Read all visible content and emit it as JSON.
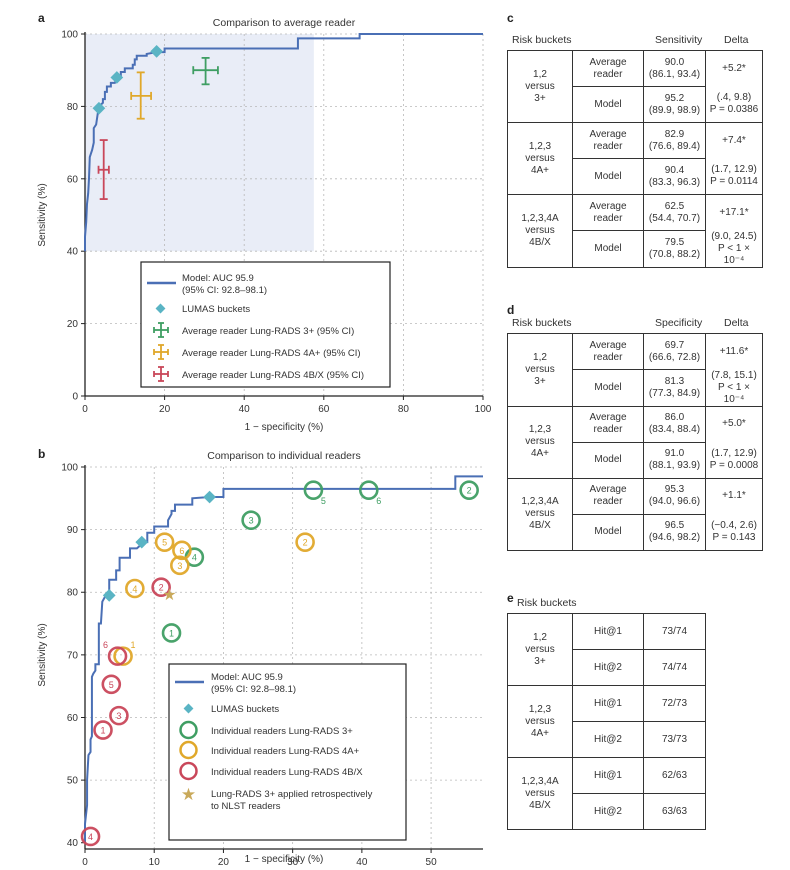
{
  "panels": {
    "a": "a",
    "b": "b",
    "c": "c",
    "d": "d",
    "e": "e"
  },
  "chart_data": [
    {
      "id": "a",
      "type": "line",
      "title": "Comparison to average reader",
      "xlabel": "1 − specificity (%)",
      "ylabel": "Sensitivity (%)",
      "xlim": [
        0,
        100
      ],
      "ylim": [
        0,
        100
      ],
      "xticks": [
        0,
        20,
        40,
        60,
        80,
        100
      ],
      "yticks": [
        0,
        20,
        40,
        60,
        80,
        100
      ],
      "grid": true,
      "shaded_region": {
        "x": [
          0,
          57.5
        ],
        "y": [
          40,
          100
        ]
      },
      "colors": {
        "model": "#4a6fb5",
        "lumas": "#5ab4c4",
        "shade": "#e9edf7",
        "r3": "#3f9e63",
        "r4a": "#e0a82a",
        "r4b": "#c9475a"
      },
      "roc_curve": [
        [
          0,
          40
        ],
        [
          0,
          44
        ],
        [
          0.3,
          48
        ],
        [
          0.5,
          53
        ],
        [
          0.8,
          56
        ],
        [
          1,
          60
        ],
        [
          1.2,
          66
        ],
        [
          1.8,
          68
        ],
        [
          2.2,
          70
        ],
        [
          2.2,
          74
        ],
        [
          2.8,
          75
        ],
        [
          3.2,
          78
        ],
        [
          3.5,
          80
        ],
        [
          4.5,
          81
        ],
        [
          4.5,
          82
        ],
        [
          5,
          82
        ],
        [
          5,
          84
        ],
        [
          5.5,
          84
        ],
        [
          5.5,
          85.5
        ],
        [
          6.5,
          85.5
        ],
        [
          6.5,
          86.5
        ],
        [
          7.5,
          86.5
        ],
        [
          8,
          88
        ],
        [
          9,
          88
        ],
        [
          9,
          89.5
        ],
        [
          10,
          89.5
        ],
        [
          10,
          90.5
        ],
        [
          12,
          90.5
        ],
        [
          12,
          91.5
        ],
        [
          12.5,
          91.5
        ],
        [
          12.5,
          93
        ],
        [
          13,
          93
        ],
        [
          13,
          94
        ],
        [
          15.5,
          94
        ],
        [
          15.5,
          94.5
        ],
        [
          18,
          95
        ],
        [
          20,
          95
        ],
        [
          20,
          96
        ],
        [
          53.5,
          96
        ],
        [
          53.5,
          98.8
        ],
        [
          69,
          98.8
        ],
        [
          69,
          100
        ],
        [
          100,
          100
        ]
      ],
      "series": [
        {
          "name": "Model: AUC 95.9",
          "legend_line2": "(95% CI: 92.8–98.1)",
          "kind": "line"
        },
        {
          "name": "LUMAS buckets",
          "kind": "diamond",
          "points": [
            [
              3.5,
              79.5
            ],
            [
              8,
              88
            ],
            [
              18,
              95.2
            ]
          ]
        },
        {
          "name": "Average reader Lung-RADS 3+ (95% CI)",
          "kind": "errorcross",
          "x": 30.3,
          "y": 90.0,
          "xerr": [
            27.2,
            33.4
          ],
          "yerr": [
            86.1,
            93.4
          ]
        },
        {
          "name": "Average reader Lung-RADS 4A+ (95% CI)",
          "kind": "errorcross",
          "x": 14.0,
          "y": 82.9,
          "xerr": [
            11.6,
            16.6
          ],
          "yerr": [
            76.6,
            89.4
          ]
        },
        {
          "name": "Average reader Lung-RADS 4B/X (95% CI)",
          "kind": "errorcross",
          "x": 4.7,
          "y": 62.5,
          "xerr": [
            3.4,
            6.0
          ],
          "yerr": [
            54.4,
            70.7
          ]
        }
      ],
      "legend_position": "bottom-center"
    },
    {
      "id": "b",
      "type": "scatter",
      "title": "Comparison to individual readers",
      "xlabel": "1 − specificity (%)",
      "ylabel": "Sensitivity (%)",
      "xlim": [
        0,
        57.5
      ],
      "ylim": [
        39,
        100
      ],
      "xticks": [
        0,
        10,
        20,
        30,
        40,
        50
      ],
      "yticks": [
        40,
        50,
        60,
        70,
        80,
        90,
        100
      ],
      "grid": true,
      "roc_curve": [
        [
          0,
          40
        ],
        [
          0,
          43
        ],
        [
          0.3,
          46
        ],
        [
          0.3,
          50
        ],
        [
          0.5,
          54
        ],
        [
          0.8,
          54.5
        ],
        [
          0.8,
          56.5
        ],
        [
          1,
          57
        ],
        [
          1,
          60
        ],
        [
          1,
          66.5
        ],
        [
          1.2,
          67
        ],
        [
          1.5,
          67.5
        ],
        [
          1.5,
          68.5
        ],
        [
          2,
          68.5
        ],
        [
          2,
          71
        ],
        [
          2,
          75
        ],
        [
          2.3,
          75
        ],
        [
          2.5,
          78.5
        ],
        [
          3,
          79.5
        ],
        [
          3.5,
          80
        ],
        [
          3.5,
          82
        ],
        [
          4.5,
          82
        ],
        [
          4.5,
          83.5
        ],
        [
          5,
          83.5
        ],
        [
          5,
          85.5
        ],
        [
          6.5,
          85.5
        ],
        [
          6.5,
          87
        ],
        [
          7.5,
          87
        ],
        [
          8.5,
          88
        ],
        [
          9,
          88
        ],
        [
          9,
          89.5
        ],
        [
          10,
          89.5
        ],
        [
          10,
          90.5
        ],
        [
          11,
          90.5
        ],
        [
          12,
          90.5
        ],
        [
          12,
          91.5
        ],
        [
          12.5,
          92.5
        ],
        [
          12.5,
          93
        ],
        [
          13,
          93
        ],
        [
          13,
          94
        ],
        [
          15.5,
          94
        ],
        [
          15.5,
          95
        ],
        [
          18,
          95.2
        ],
        [
          19,
          95.2
        ],
        [
          20,
          95.2
        ],
        [
          20,
          96.5
        ],
        [
          53.5,
          96.5
        ],
        [
          53.5,
          98.5
        ],
        [
          57.5,
          98.5
        ]
      ],
      "series": [
        {
          "name": "Model: AUC 95.9",
          "legend_line2": "(95% CI: 92.8–98.1)",
          "kind": "line"
        },
        {
          "name": "LUMAS buckets",
          "kind": "diamond",
          "points": [
            [
              3.5,
              79.5
            ],
            [
              8.2,
              88
            ],
            [
              18,
              95.2
            ]
          ]
        },
        {
          "name": "Individual readers Lung-RADS 3+",
          "kind": "ring",
          "color": "#3f9e63",
          "points": [
            {
              "label": "1",
              "x": 12.5,
              "y": 73.5,
              "label_pos": "center"
            },
            {
              "label": "2",
              "x": 55.5,
              "y": 96.3,
              "label_pos": "center"
            },
            {
              "label": "3",
              "x": 24.0,
              "y": 91.5,
              "label_pos": "center"
            },
            {
              "label": "4",
              "x": 15.8,
              "y": 85.6,
              "label_pos": "center"
            },
            {
              "label": "5",
              "x": 33.0,
              "y": 96.3,
              "label_pos": "below-right"
            },
            {
              "label": "6",
              "x": 41.0,
              "y": 96.3,
              "label_pos": "below-right"
            }
          ]
        },
        {
          "name": "Individual readers Lung-RADS 4A+",
          "kind": "ring",
          "color": "#e0a82a",
          "points": [
            {
              "label": "1",
              "x": 5.5,
              "y": 69.8,
              "label_pos": "above-right"
            },
            {
              "label": "2",
              "x": 31.8,
              "y": 88.0,
              "label_pos": "center"
            },
            {
              "label": "3",
              "x": 13.7,
              "y": 84.3,
              "label_pos": "center"
            },
            {
              "label": "4",
              "x": 7.2,
              "y": 80.6,
              "label_pos": "center"
            },
            {
              "label": "5",
              "x": 11.5,
              "y": 88.0,
              "label_pos": "center"
            },
            {
              "label": "6",
              "x": 14.0,
              "y": 86.7,
              "label_pos": "center"
            }
          ]
        },
        {
          "name": "Individual readers Lung-RADS 4B/X",
          "kind": "ring",
          "color": "#c9475a",
          "points": [
            {
              "label": "1",
              "x": 2.6,
              "y": 58.0,
              "label_pos": "center"
            },
            {
              "label": "2",
              "x": 11.0,
              "y": 80.8,
              "label_pos": "center"
            },
            {
              "label": "3",
              "x": 4.9,
              "y": 60.3,
              "label_pos": "center"
            },
            {
              "label": "4",
              "x": 0.8,
              "y": 41.0,
              "label_pos": "center"
            },
            {
              "label": "5",
              "x": 3.8,
              "y": 65.3,
              "label_pos": "center"
            },
            {
              "label": "6",
              "x": 4.7,
              "y": 69.8,
              "label_pos": "above-left"
            }
          ]
        },
        {
          "name": "Lung-RADS 3+ applied retrospectively",
          "legend_line2": "to NLST readers",
          "kind": "star",
          "color": "#c9a95a",
          "points": [
            [
              12.2,
              79.7
            ]
          ]
        }
      ],
      "legend_position": "bottom-center"
    }
  ],
  "legend_a": [
    {
      "label": "Model: AUC 95.9",
      "label2": "(95% CI: 92.8–98.1)"
    },
    {
      "label": "LUMAS buckets"
    },
    {
      "label": "Average reader Lung-RADS 3+ (95% CI)"
    },
    {
      "label": "Average reader Lung-RADS 4A+ (95% CI)"
    },
    {
      "label": "Average reader Lung-RADS 4B/X (95% CI)"
    }
  ],
  "legend_b": [
    {
      "label": "Model: AUC 95.9",
      "label2": "(95% CI: 92.8–98.1)"
    },
    {
      "label": "LUMAS buckets"
    },
    {
      "label": "Individual readers Lung-RADS 3+"
    },
    {
      "label": "Individual readers Lung-RADS 4A+"
    },
    {
      "label": "Individual readers Lung-RADS 4B/X"
    },
    {
      "label": "Lung-RADS 3+ applied retrospectively",
      "label2": "to NLST readers"
    }
  ],
  "table_c": {
    "headers": {
      "bucket": "Risk buckets",
      "metric": "Sensitivity",
      "delta": "Delta"
    },
    "groups": [
      {
        "bucket": [
          "1,2",
          "versus",
          "3+"
        ],
        "rows": [
          {
            "who": [
              "Average",
              "reader"
            ],
            "val": "90.0",
            "ci": "(86.1, 93.4)"
          },
          {
            "who": [
              "Model"
            ],
            "val": "95.2",
            "ci": "(89.9, 98.9)"
          }
        ],
        "delta": "+5.2*",
        "delta_ci": "(.4, 9.8)",
        "p": "P = 0.0386"
      },
      {
        "bucket": [
          "1,2,3",
          "versus",
          "4A+"
        ],
        "rows": [
          {
            "who": [
              "Average",
              "reader"
            ],
            "val": "82.9",
            "ci": "(76.6, 89.4)"
          },
          {
            "who": [
              "Model"
            ],
            "val": "90.4",
            "ci": "(83.3, 96.3)"
          }
        ],
        "delta": "+7.4*",
        "delta_ci": "(1.7, 12.9)",
        "p": "P = 0.0114"
      },
      {
        "bucket": [
          "1,2,3,4A",
          "versus",
          "4B/X"
        ],
        "rows": [
          {
            "who": [
              "Average",
              "reader"
            ],
            "val": "62.5",
            "ci": "(54.4, 70.7)"
          },
          {
            "who": [
              "Model"
            ],
            "val": "79.5",
            "ci": "(70.8, 88.2)"
          }
        ],
        "delta": "+17.1*",
        "delta_ci": "(9.0, 24.5)",
        "p": "P < 1 × 10⁻⁴"
      }
    ]
  },
  "table_d": {
    "headers": {
      "bucket": "Risk buckets",
      "metric": "Specificity",
      "delta": "Delta"
    },
    "groups": [
      {
        "bucket": [
          "1,2",
          "versus",
          "3+"
        ],
        "rows": [
          {
            "who": [
              "Average",
              "reader"
            ],
            "val": "69.7",
            "ci": "(66.6, 72.8)"
          },
          {
            "who": [
              "Model"
            ],
            "val": "81.3",
            "ci": "(77.3, 84.9)"
          }
        ],
        "delta": "+11.6*",
        "delta_ci": "(7.8, 15.1)",
        "p": "P < 1 × 10⁻⁴"
      },
      {
        "bucket": [
          "1,2,3",
          "versus",
          "4A+"
        ],
        "rows": [
          {
            "who": [
              "Average",
              "reader"
            ],
            "val": "86.0",
            "ci": "(83.4, 88.4)"
          },
          {
            "who": [
              "Model"
            ],
            "val": "91.0",
            "ci": "(88.1, 93.9)"
          }
        ],
        "delta": "+5.0*",
        "delta_ci": "(1.7, 12.9)",
        "p": "P = 0.0008"
      },
      {
        "bucket": [
          "1,2,3,4A",
          "versus",
          "4B/X"
        ],
        "rows": [
          {
            "who": [
              "Average",
              "reader"
            ],
            "val": "95.3",
            "ci": "(94.0, 96.6)"
          },
          {
            "who": [
              "Model"
            ],
            "val": "96.5",
            "ci": "(94.6, 98.2)"
          }
        ],
        "delta": "+1.1*",
        "delta_ci": "(−0.4, 2.6)",
        "p": "P = 0.143"
      }
    ]
  },
  "table_e": {
    "headers": {
      "bucket": "Risk buckets"
    },
    "groups": [
      {
        "bucket": [
          "1,2",
          "versus",
          "3+"
        ],
        "rows": [
          {
            "who": "Hit@1",
            "val": "73/74"
          },
          {
            "who": "Hit@2",
            "val": "74/74"
          }
        ]
      },
      {
        "bucket": [
          "1,2,3",
          "versus",
          "4A+"
        ],
        "rows": [
          {
            "who": "Hit@1",
            "val": "72/73"
          },
          {
            "who": "Hit@2",
            "val": "73/73"
          }
        ]
      },
      {
        "bucket": [
          "1,2,3,4A",
          "versus",
          "4B/X"
        ],
        "rows": [
          {
            "who": "Hit@1",
            "val": "62/63"
          },
          {
            "who": "Hit@2",
            "val": "63/63"
          }
        ]
      }
    ]
  }
}
